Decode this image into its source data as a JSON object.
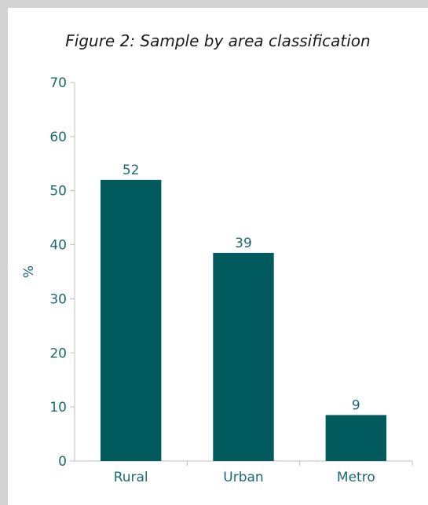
{
  "chart_data": {
    "type": "bar",
    "title": "Figure 2: Sample by area classification",
    "xlabel": "",
    "ylabel": "%",
    "categories": [
      "Rural",
      "Urban",
      "Metro"
    ],
    "values": [
      52,
      38.5,
      8.5
    ],
    "data_labels": [
      "52",
      "39",
      "9"
    ],
    "ylim": [
      0,
      70
    ],
    "yticks": [
      0,
      10,
      20,
      30,
      40,
      50,
      60,
      70
    ],
    "bar_color": "#005a5e",
    "grid": false,
    "legend": "none"
  }
}
